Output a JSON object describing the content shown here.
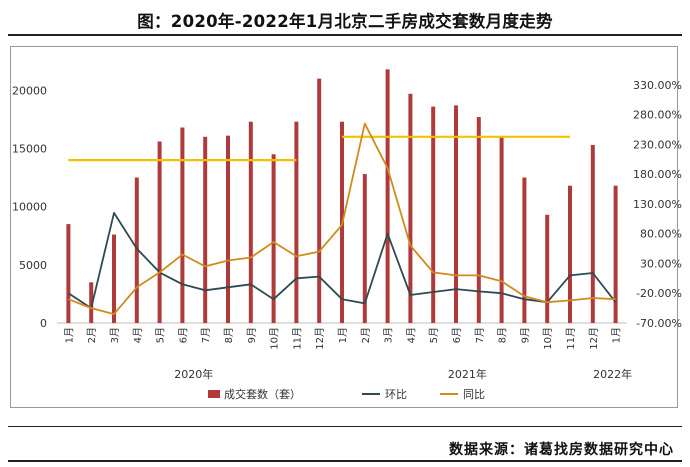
{
  "title": "图：2020年-2022年1月北京二手房成交套数月度走势",
  "source": "数据来源：诸葛找房数据研究中心",
  "chart_data": {
    "type": "bar",
    "categories": [
      "1月",
      "2月",
      "3月",
      "4月",
      "5月",
      "6月",
      "7月",
      "8月",
      "9月",
      "10月",
      "11月",
      "12月",
      "1月",
      "2月",
      "3月",
      "4月",
      "5月",
      "6月",
      "7月",
      "8月",
      "9月",
      "10月",
      "11月",
      "12月",
      "1月"
    ],
    "years": [
      {
        "label": "2020年",
        "from": 0,
        "to": 11
      },
      {
        "label": "2021年",
        "from": 12,
        "to": 23
      },
      {
        "label": "2022年",
        "from": 24,
        "to": 24
      }
    ],
    "series": [
      {
        "name": "成交套数（套）",
        "kind": "bar",
        "axis": "left",
        "color": "#b03a3a",
        "values": [
          8500,
          3500,
          7600,
          12500,
          15600,
          16800,
          16000,
          16100,
          17300,
          14500,
          17300,
          21000,
          17300,
          12800,
          21800,
          19700,
          18600,
          18700,
          17700,
          16000,
          12500,
          9300,
          11800,
          15300,
          11800
        ]
      },
      {
        "name": "环比",
        "kind": "line",
        "axis": "right",
        "color": "#2e4a52",
        "values": [
          -20,
          -45,
          115,
          55,
          15,
          -5,
          -15,
          -10,
          -5,
          -30,
          5,
          8,
          -30,
          -37,
          80,
          -23,
          -18,
          -13,
          -17,
          -20,
          -30,
          -35,
          10,
          14,
          -35
        ]
      },
      {
        "name": "同比",
        "kind": "line",
        "axis": "right",
        "color": "#d08a1e",
        "values": [
          -30,
          -45,
          -55,
          -10,
          15,
          45,
          25,
          35,
          40,
          66,
          42,
          50,
          95,
          265,
          190,
          60,
          15,
          10,
          10,
          0,
          -25,
          -35,
          -32,
          -28,
          -30
        ]
      }
    ],
    "reference_lines": [
      {
        "value": 14000,
        "axis": "left",
        "from": 0,
        "to": 10,
        "color": "#f2c200"
      },
      {
        "value": 16000,
        "axis": "left",
        "from": 12,
        "to": 22,
        "color": "#f2c200"
      }
    ],
    "y_left": {
      "min": 0,
      "max": 22000,
      "ticks": [
        "0",
        "5000",
        "10000",
        "15000",
        "20000"
      ],
      "tick_values": [
        0,
        5000,
        10000,
        15000,
        20000
      ]
    },
    "y_right": {
      "min": -70,
      "max": 360,
      "ticks": [
        "-70.00%",
        "-20.00%",
        "30.00%",
        "80.00%",
        "130.00%",
        "180.00%",
        "230.00%",
        "280.00%",
        "330.00%"
      ],
      "tick_values": [
        -70,
        -20,
        30,
        80,
        130,
        180,
        230,
        280,
        330
      ]
    },
    "grid": false,
    "legend_position": "bottom"
  }
}
